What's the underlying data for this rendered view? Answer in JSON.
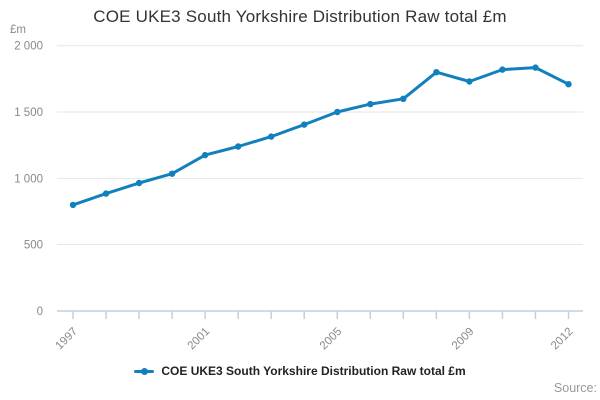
{
  "title": "COE UKE3 South Yorkshire Distribution Raw total £m",
  "legend": {
    "label": "COE UKE3 South Yorkshire Distribution Raw total £m"
  },
  "source_label": "Source:",
  "chart_data": {
    "type": "line",
    "title": "COE UKE3 South Yorkshire Distribution Raw total £m",
    "unit_label": "£m",
    "xlabel": "",
    "ylabel": "£m",
    "x": [
      1997,
      1998,
      1999,
      2000,
      2001,
      2002,
      2003,
      2004,
      2005,
      2006,
      2007,
      2008,
      2009,
      2010,
      2011,
      2012
    ],
    "values": [
      800,
      885,
      965,
      1035,
      1175,
      1240,
      1315,
      1405,
      1500,
      1560,
      1600,
      1800,
      1730,
      1820,
      1835,
      1710
    ],
    "series_name": "COE UKE3 South Yorkshire Distribution Raw total £m",
    "xlim": [
      1997,
      2012
    ],
    "ylim": [
      0,
      2000
    ],
    "yticks": [
      0,
      500,
      1000,
      1500,
      2000
    ],
    "ytick_labels": [
      "0",
      "500",
      "1 000",
      "1 500",
      "2 000"
    ],
    "xticks_labeled": [
      1997,
      2001,
      2005,
      2009,
      2012
    ],
    "grid": "horizontal",
    "legend_position": "bottom",
    "colors": {
      "line": "#1380BE",
      "grid": "#e6e6e6",
      "axis": "#c3cfe0",
      "tick_label": "#898989",
      "title": "#333333"
    }
  }
}
